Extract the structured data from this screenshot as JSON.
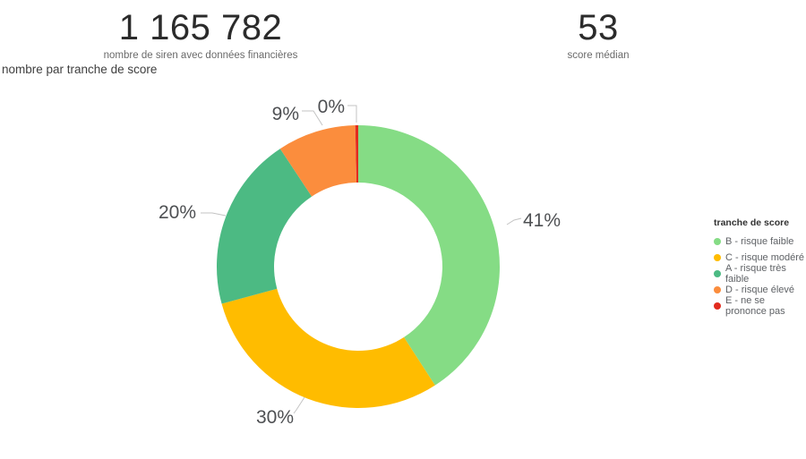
{
  "page": {
    "background": "#FFFFFF"
  },
  "kpis": [
    {
      "value": "1 165 782",
      "label": "nombre de siren avec données financières"
    },
    {
      "value": "53",
      "label": "score médian"
    }
  ],
  "chart_data": {
    "type": "donut",
    "title": "nombre par tranche de score",
    "legend_title": "tranche de score",
    "legend_position": "right",
    "label_format": "percent",
    "slices": [
      {
        "label": "B - risque faible",
        "value_pct": 41,
        "color": "#85DC85"
      },
      {
        "label": "C - risque modéré",
        "value_pct": 30,
        "color": "#FFBC00"
      },
      {
        "label": "A - risque très faible",
        "value_pct": 20,
        "color": "#4CBA83"
      },
      {
        "label": "D - risque élevé",
        "value_pct": 9,
        "color": "#FB8D3D"
      },
      {
        "label": "E - ne se prononce pas",
        "value_pct": 0,
        "color": "#E22B1E"
      }
    ]
  }
}
